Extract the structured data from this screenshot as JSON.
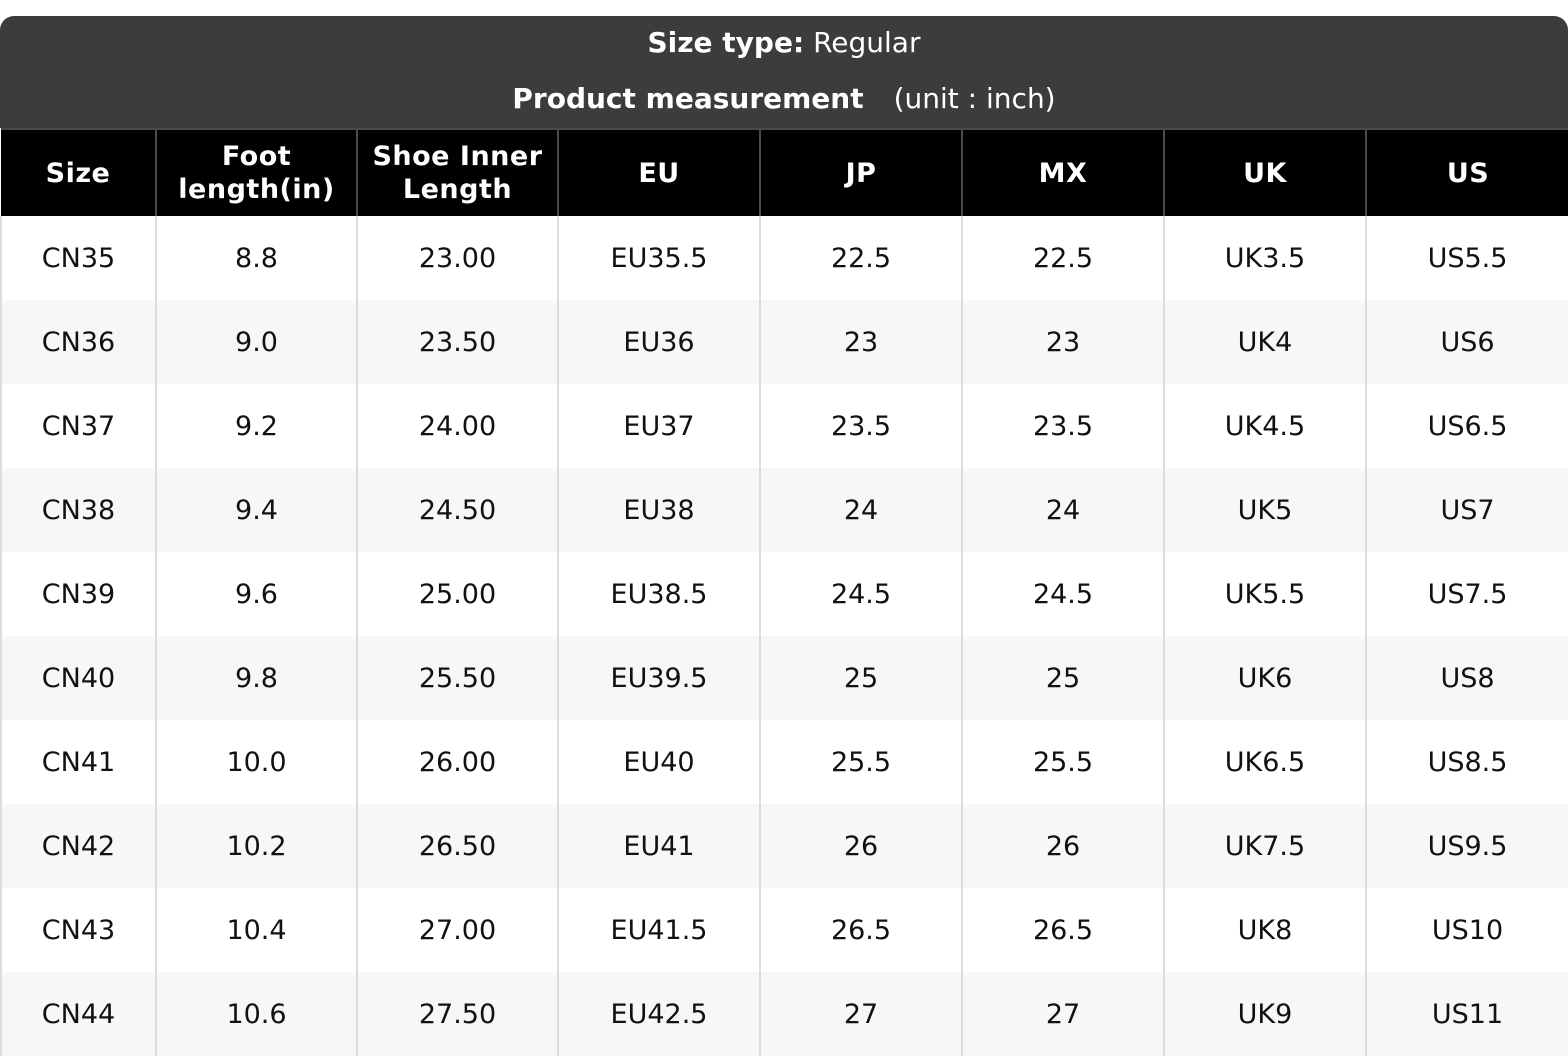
{
  "header": {
    "size_type_label": "Size type:",
    "size_type_value": "Regular",
    "measurement_label": "Product measurement",
    "unit_label": "(unit : inch)"
  },
  "table": {
    "columns": [
      "Size",
      "Foot length(in)",
      "Shoe Inner Length",
      "EU",
      "JP",
      "MX",
      "UK",
      "US"
    ],
    "column_lines": [
      [
        "Size"
      ],
      [
        "Foot",
        "length(in)"
      ],
      [
        "Shoe Inner",
        "Length"
      ],
      [
        "EU"
      ],
      [
        "JP"
      ],
      [
        "MX"
      ],
      [
        "UK"
      ],
      [
        "US"
      ]
    ],
    "rows": [
      [
        "CN35",
        "8.8",
        "23.00",
        "EU35.5",
        "22.5",
        "22.5",
        "UK3.5",
        "US5.5"
      ],
      [
        "CN36",
        "9.0",
        "23.50",
        "EU36",
        "23",
        "23",
        "UK4",
        "US6"
      ],
      [
        "CN37",
        "9.2",
        "24.00",
        "EU37",
        "23.5",
        "23.5",
        "UK4.5",
        "US6.5"
      ],
      [
        "CN38",
        "9.4",
        "24.50",
        "EU38",
        "24",
        "24",
        "UK5",
        "US7"
      ],
      [
        "CN39",
        "9.6",
        "25.00",
        "EU38.5",
        "24.5",
        "24.5",
        "UK5.5",
        "US7.5"
      ],
      [
        "CN40",
        "9.8",
        "25.50",
        "EU39.5",
        "25",
        "25",
        "UK6",
        "US8"
      ],
      [
        "CN41",
        "10.0",
        "26.00",
        "EU40",
        "25.5",
        "25.5",
        "UK6.5",
        "US8.5"
      ],
      [
        "CN42",
        "10.2",
        "26.50",
        "EU41",
        "26",
        "26",
        "UK7.5",
        "US9.5"
      ],
      [
        "CN43",
        "10.4",
        "27.00",
        "EU41.5",
        "26.5",
        "26.5",
        "UK8",
        "US10"
      ],
      [
        "CN44",
        "10.6",
        "27.50",
        "EU42.5",
        "27",
        "27",
        "UK9",
        "US11"
      ]
    ]
  },
  "colors": {
    "banner_bg": "#3c3c3c",
    "header_bg": "#000000",
    "row_alt_bg": "#f7f7f7",
    "grid_line": "#dcdcdc"
  }
}
